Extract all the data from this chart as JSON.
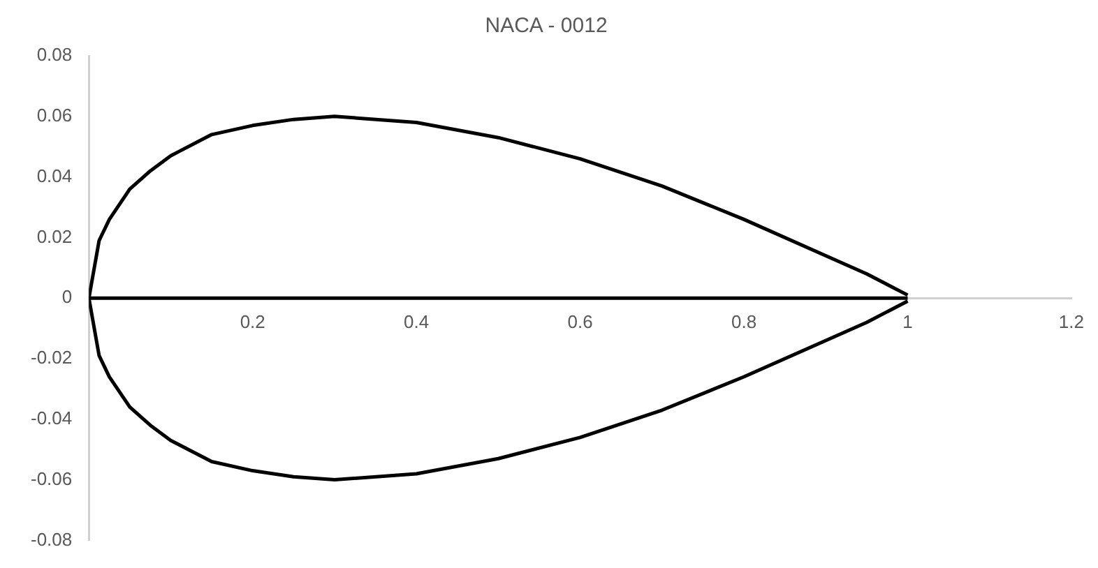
{
  "chart_data": {
    "type": "line",
    "title": "NACA - 0012",
    "xlim": [
      0,
      1.2
    ],
    "xticks": [
      0.2,
      0.4,
      0.6,
      0.8,
      1,
      1.2
    ],
    "ylim": [
      -0.08,
      0.08
    ],
    "yticks": [
      0.08,
      0.06,
      0.04,
      0.02,
      0,
      -0.02,
      -0.04,
      -0.06,
      -0.08
    ],
    "grid": false,
    "legend": false,
    "marker": "none",
    "line_style": "solid",
    "series": [
      {
        "color": "#000000",
        "x": [
          1,
          0.95,
          0.9,
          0.8,
          0.7,
          0.6,
          0.5,
          0.4,
          0.3,
          0.25,
          0.2,
          0.15,
          0.1,
          0.075,
          0.05,
          0.025,
          0.0125,
          0,
          0.0125,
          0.025,
          0.05,
          0.075,
          0.1,
          0.15,
          0.2,
          0.25,
          0.3,
          0.4,
          0.5,
          0.6,
          0.7,
          0.8,
          0.9,
          0.95,
          1
        ],
        "values": [
          0.001,
          0.008,
          0.014,
          0.026,
          0.037,
          0.046,
          0.053,
          0.058,
          0.06,
          0.059,
          0.057,
          0.054,
          0.047,
          0.042,
          0.036,
          0.026,
          0.019,
          0,
          -0.019,
          -0.026,
          -0.036,
          -0.042,
          -0.047,
          -0.054,
          -0.057,
          -0.059,
          -0.06,
          -0.058,
          -0.053,
          -0.046,
          -0.037,
          -0.026,
          -0.014,
          -0.008,
          -0.001
        ]
      },
      {
        "color": "#000000",
        "x": [
          0,
          1
        ],
        "values": [
          0,
          0
        ]
      }
    ]
  }
}
